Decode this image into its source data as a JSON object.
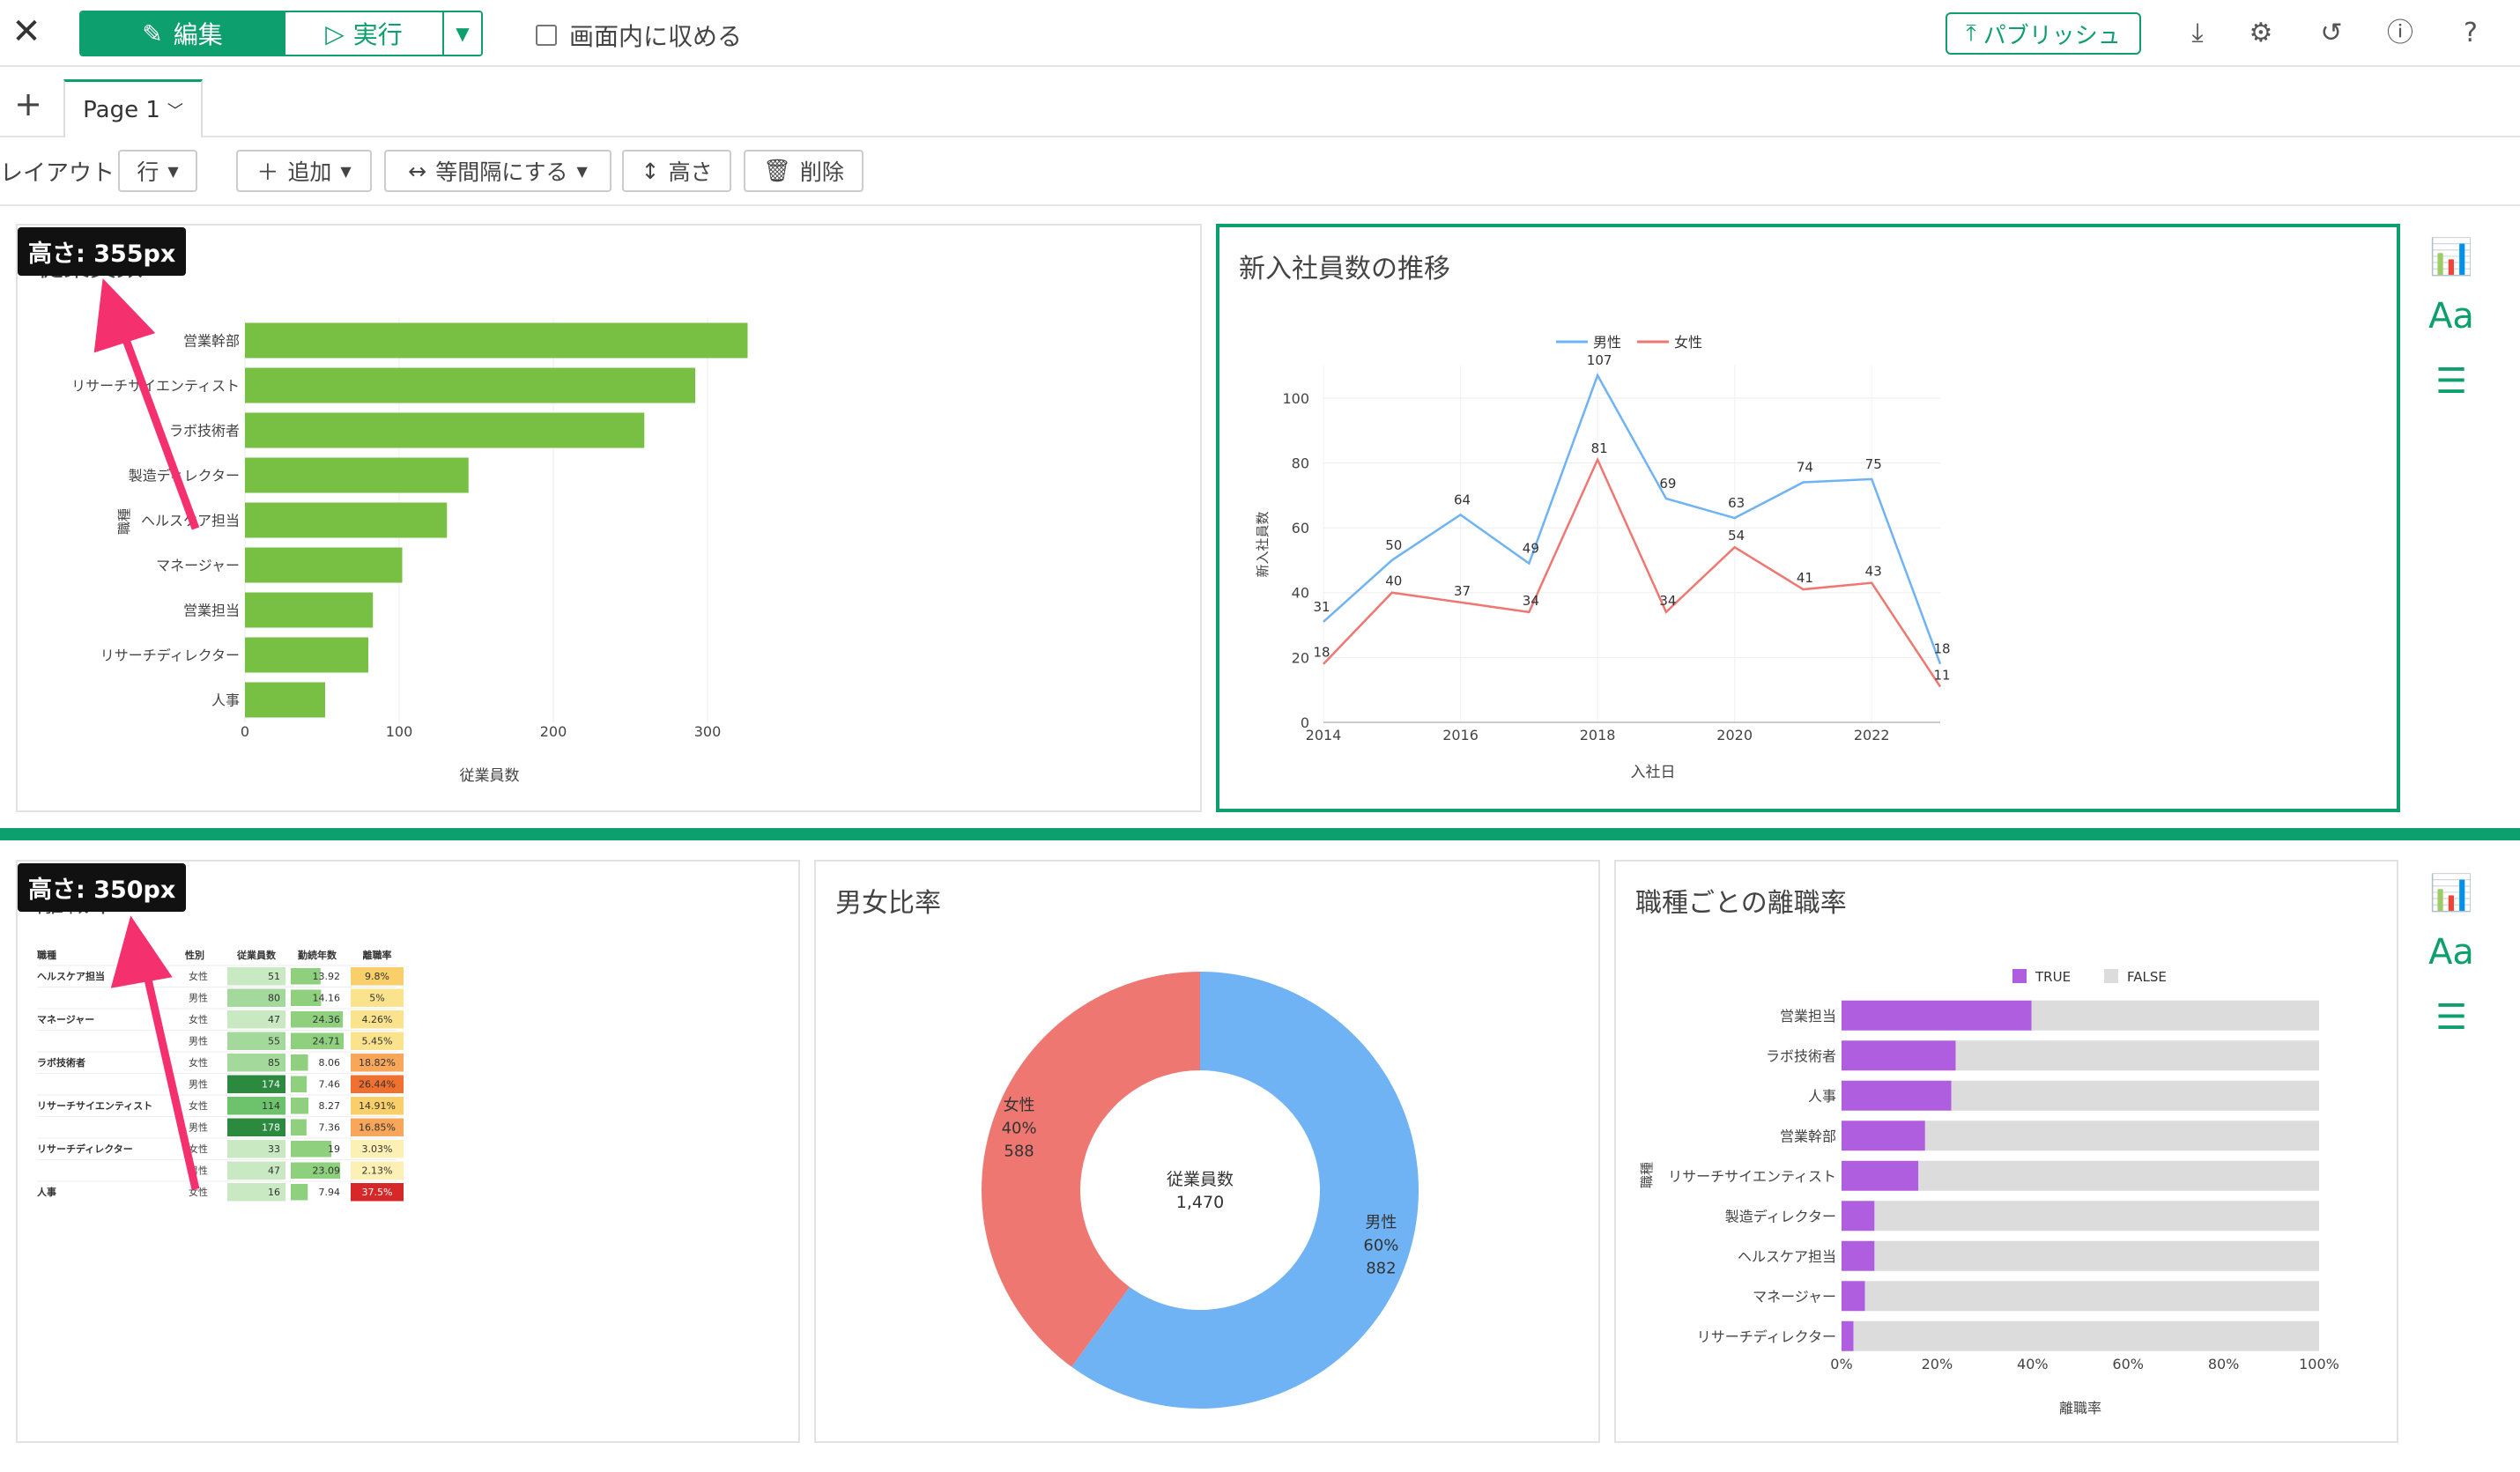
{
  "toolbar": {
    "edit_label": "編集",
    "run_label": "実行",
    "fit_label": "画面内に収める",
    "publish_label": "パブリッシュ"
  },
  "tabs": {
    "add": "+",
    "page_label": "Page 1"
  },
  "layout_bar": {
    "label": "レイアウト",
    "row_select": "行",
    "add_label": "追加",
    "equal_label": "等間隔にする",
    "height_label": "高さ",
    "delete_label": "削除"
  },
  "badges": {
    "top": "高さ: 355px",
    "bottom": "高さ: 350px"
  },
  "colors": {
    "accent": "#0e9f6e",
    "bar_green": "#77c043",
    "male": "#6fb3f5",
    "female": "#ee7772",
    "true_purple": "#b05ee0",
    "false_gray": "#dcdcdc"
  },
  "panels": {
    "employees": {
      "title": "従業員数"
    },
    "hires": {
      "title": "新入社員数の推移"
    },
    "attrition": {
      "title": "離職率"
    },
    "gender": {
      "title": "男女比率"
    },
    "job_attrition": {
      "title": "職種ごとの離職率"
    }
  },
  "chart_data": [
    {
      "type": "bar",
      "orientation": "horizontal",
      "categories": [
        "営業幹部",
        "リサーチサイエンティスト",
        "ラボ技術者",
        "製造ディレクター",
        "ヘルスケア担当",
        "マネージャー",
        "営業担当",
        "リサーチディレクター",
        "人事"
      ],
      "values": [
        326,
        292,
        259,
        145,
        131,
        102,
        83,
        80,
        52
      ],
      "xlabel": "従業員数",
      "ylabel": "職種",
      "xlim": [
        0,
        340
      ],
      "xticks": [
        0,
        100,
        200,
        300
      ]
    },
    {
      "type": "line",
      "title": "新入社員数の推移",
      "x": [
        2014,
        2015,
        2016,
        2017,
        2018,
        2019,
        2020,
        2021,
        2022,
        2023
      ],
      "series": [
        {
          "name": "男性",
          "values": [
            31,
            50,
            64,
            49,
            107,
            69,
            63,
            74,
            75,
            18
          ]
        },
        {
          "name": "女性",
          "values": [
            18,
            40,
            37,
            34,
            81,
            34,
            54,
            41,
            43,
            11
          ]
        }
      ],
      "xlabel": "入社日",
      "ylabel": "新入社員数",
      "ylim": [
        0,
        110
      ],
      "yticks": [
        0,
        20,
        40,
        60,
        80,
        100
      ],
      "xticks": [
        2014,
        2016,
        2018,
        2020,
        2022
      ],
      "legend": "top"
    },
    {
      "type": "table",
      "title": "離職率",
      "headers": [
        "職種",
        "性別",
        "従業員数",
        "勤続年数",
        "離職率"
      ],
      "rows": [
        [
          "ヘルスケア担当",
          "女性",
          "51",
          "13.92",
          "9.8%"
        ],
        [
          "",
          "男性",
          "80",
          "14.16",
          "5%"
        ],
        [
          "マネージャー",
          "女性",
          "47",
          "24.36",
          "4.26%"
        ],
        [
          "",
          "男性",
          "55",
          "24.71",
          "5.45%"
        ],
        [
          "ラボ技術者",
          "女性",
          "85",
          "8.06",
          "18.82%"
        ],
        [
          "",
          "男性",
          "174",
          "7.46",
          "26.44%"
        ],
        [
          "リサーチサイエンティスト",
          "女性",
          "114",
          "8.27",
          "14.91%"
        ],
        [
          "",
          "男性",
          "178",
          "7.36",
          "16.85%"
        ],
        [
          "リサーチディレクター",
          "女性",
          "33",
          "19",
          "3.03%"
        ],
        [
          "",
          "男性",
          "47",
          "23.09",
          "2.13%"
        ],
        [
          "人事",
          "女性",
          "16",
          "7.94",
          "37.5%"
        ]
      ]
    },
    {
      "type": "pie",
      "title": "男女比率",
      "center_label": "従業員数",
      "center_value": "1,470",
      "slices": [
        {
          "name": "男性",
          "percent": "60%",
          "value": 882
        },
        {
          "name": "女性",
          "percent": "40%",
          "value": 588
        }
      ]
    },
    {
      "type": "bar",
      "orientation": "horizontal",
      "stacked": "percent",
      "title": "職種ごとの離職率",
      "categories": [
        "営業担当",
        "ラボ技術者",
        "人事",
        "営業幹部",
        "リサーチサイエンティスト",
        "製造ディレクター",
        "ヘルスケア担当",
        "マネージャー",
        "リサーチディレクター"
      ],
      "series": [
        {
          "name": "TRUE",
          "values": [
            39.8,
            23.9,
            23.0,
            17.5,
            16.1,
            6.9,
            6.9,
            4.9,
            2.5
          ]
        },
        {
          "name": "FALSE",
          "values": [
            60.2,
            76.1,
            77.0,
            82.5,
            83.9,
            93.1,
            93.1,
            95.1,
            97.5
          ]
        }
      ],
      "xlabel": "離職率",
      "ylabel": "職種",
      "xticks": [
        "0%",
        "20%",
        "40%",
        "60%",
        "80%",
        "100%"
      ],
      "legend": "top"
    }
  ]
}
